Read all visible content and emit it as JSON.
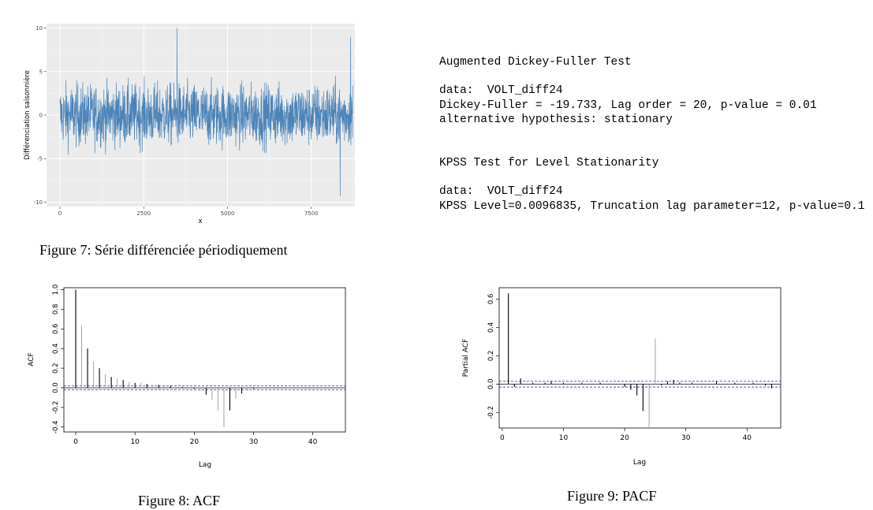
{
  "figure7": {
    "caption": "Figure 7: Série différenciée périodiquement",
    "chart_data": {
      "type": "line",
      "ylabel": "Différenciation saisonnière",
      "xlabel": "x",
      "xlim": [
        -400,
        8800
      ],
      "ylim": [
        -10.5,
        10.5
      ],
      "xticks": [
        0,
        2500,
        5000,
        7500
      ],
      "xtick_labels": [
        "0",
        "2500",
        "5000",
        "7500"
      ],
      "yticks": [
        -10,
        -5,
        0,
        5,
        10
      ],
      "ytick_labels": [
        "-10",
        "-5",
        "0",
        "5",
        "10"
      ],
      "n_points": 8736,
      "approx_envelope": {
        "typical_range": [
          -4,
          4
        ],
        "max": 10.2,
        "min": -9.3
      },
      "line_color": "#4a83b8",
      "bg_color": "#ebebeb"
    }
  },
  "test_output": {
    "adf_title": "Augmented Dickey-Fuller Test",
    "adf_data": "data:  VOLT_diff24",
    "adf_stats": "Dickey-Fuller = -19.733, Lag order = 20, p-value = 0.01",
    "adf_alt": "alternative hypothesis: stationary",
    "kpss_title": "KPSS Test for Level Stationarity",
    "kpss_data": "data:  VOLT_diff24",
    "kpss_stats": "KPSS Level=0.0096835, Truncation lag parameter=12, p-value=0.1"
  },
  "figure8": {
    "caption": "Figure 8: ACF",
    "chart_data": {
      "type": "bar",
      "ylabel": "ACF",
      "xlabel": "Lag",
      "xlim": [
        -2,
        45.5
      ],
      "ylim": [
        -0.45,
        1.02
      ],
      "xticks": [
        0,
        10,
        20,
        30,
        40
      ],
      "xtick_labels": [
        "0",
        "10",
        "20",
        "30",
        "40"
      ],
      "yticks": [
        -0.4,
        -0.2,
        0.0,
        0.2,
        0.4,
        0.6,
        0.8,
        1.0
      ],
      "ytick_labels": [
        "-0.4",
        "-0.2",
        "0.0",
        "0.2",
        "0.4",
        "0.6",
        "0.8",
        "1.0"
      ],
      "conf_bound": 0.021,
      "lags": [
        0,
        1,
        2,
        3,
        4,
        5,
        6,
        7,
        8,
        9,
        10,
        11,
        12,
        13,
        14,
        15,
        16,
        17,
        18,
        19,
        20,
        21,
        22,
        23,
        24,
        25,
        26,
        27,
        28,
        29,
        30,
        31,
        32,
        33,
        34,
        35,
        36,
        37,
        38,
        39,
        40,
        41,
        42,
        43,
        44,
        45
      ],
      "values": [
        1.0,
        0.64,
        0.4,
        0.27,
        0.2,
        0.14,
        0.11,
        0.09,
        0.08,
        0.06,
        0.05,
        0.05,
        0.04,
        0.03,
        0.03,
        0.02,
        0.02,
        0.01,
        0.01,
        0.0,
        -0.01,
        -0.03,
        -0.07,
        -0.12,
        -0.23,
        -0.4,
        -0.23,
        -0.11,
        -0.06,
        -0.03,
        -0.01,
        0.0,
        0.0,
        0.0,
        0.0,
        0.0,
        0.0,
        0.0,
        0.0,
        0.0,
        0.0,
        0.0,
        0.0,
        0.0,
        0.0,
        0.0
      ],
      "conf_color": "#2b35c9"
    }
  },
  "figure9": {
    "caption": "Figure 9: PACF",
    "chart_data": {
      "type": "bar",
      "ylabel": "Partial ACF",
      "xlabel": "Lag",
      "xlim": [
        -0.5,
        45.5
      ],
      "ylim": [
        -0.31,
        0.68
      ],
      "xticks": [
        0,
        10,
        20,
        30,
        40
      ],
      "xtick_labels": [
        "0",
        "10",
        "20",
        "30",
        "40"
      ],
      "yticks": [
        -0.2,
        0.0,
        0.2,
        0.4,
        0.6
      ],
      "ytick_labels": [
        "-0.2",
        "0.0",
        "0.2",
        "0.4",
        "0.6"
      ],
      "conf_bound": 0.021,
      "lags": [
        1,
        2,
        3,
        4,
        5,
        6,
        7,
        8,
        9,
        10,
        11,
        12,
        13,
        14,
        15,
        16,
        17,
        18,
        19,
        20,
        21,
        22,
        23,
        24,
        25,
        26,
        27,
        28,
        29,
        30,
        31,
        32,
        33,
        34,
        35,
        36,
        37,
        38,
        39,
        40,
        41,
        42,
        43,
        44,
        45
      ],
      "values": [
        0.64,
        -0.02,
        0.04,
        0.0,
        0.01,
        0.0,
        0.01,
        0.02,
        0.0,
        0.01,
        0.0,
        0.0,
        0.01,
        0.0,
        0.0,
        0.01,
        0.0,
        0.0,
        0.0,
        -0.02,
        -0.04,
        -0.08,
        -0.19,
        -0.31,
        0.32,
        -0.01,
        0.02,
        0.03,
        0.01,
        0.0,
        0.01,
        0.0,
        0.0,
        0.0,
        0.02,
        0.0,
        0.0,
        0.01,
        0.0,
        0.0,
        0.01,
        0.0,
        -0.01,
        -0.03,
        0.0
      ],
      "conf_color": "#2b35c9"
    }
  }
}
